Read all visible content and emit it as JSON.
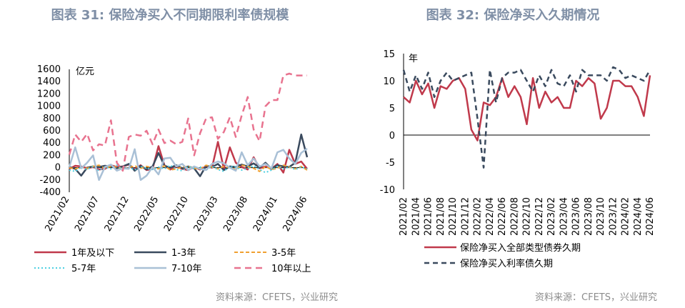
{
  "colors": {
    "title": "#7f8fa6",
    "red": "#c0394b",
    "navy": "#3a4a5e",
    "orange": "#f0a030",
    "cyan": "#4dd0e1",
    "lightblue": "#a9c0d6",
    "pink": "#e8738f"
  },
  "chart_data": [
    {
      "type": "line",
      "title": "图表 31: 保险净买入不同期限利率债规模",
      "unit": "亿元",
      "ylim": [
        -400,
        1600
      ],
      "yticks": [
        "1600",
        "1400",
        "1200",
        "1000",
        "800",
        "600",
        "400",
        "200",
        "0",
        "-200",
        "-400"
      ],
      "xtick_labels": [
        "2021/02",
        "2021/07",
        "2021/12",
        "2022/05",
        "2022/10",
        "2023/03",
        "2023/08",
        "2024/01",
        "2024/06"
      ],
      "x_start": "2021/02",
      "x_end": "2024/06",
      "series": [
        {
          "name": "1年及以下",
          "color": "#c0394b",
          "dash": "",
          "width": 2.5,
          "values": [
            -20,
            30,
            20,
            -10,
            10,
            -30,
            -20,
            40,
            10,
            20,
            50,
            -30,
            40,
            -40,
            -20,
            350,
            40,
            -30,
            20,
            -20,
            -40,
            10,
            -30,
            20,
            0,
            420,
            -20,
            330,
            80,
            10,
            -30,
            170,
            -10,
            20,
            -20,
            60,
            -80,
            290,
            60,
            100,
            -20
          ]
        },
        {
          "name": "1-3年",
          "color": "#3a4a5e",
          "dash": "",
          "width": 2.5,
          "values": [
            10,
            -20,
            -130,
            0,
            20,
            10,
            30,
            20,
            -10,
            20,
            60,
            -50,
            30,
            -30,
            20,
            240,
            30,
            0,
            40,
            -10,
            20,
            -10,
            -140,
            30,
            10,
            60,
            -40,
            20,
            10,
            50,
            20,
            70,
            0,
            80,
            -20,
            40,
            20,
            10,
            80,
            540,
            170
          ]
        },
        {
          "name": "3-5年",
          "color": "#f0a030",
          "dash": "5,3",
          "width": 2,
          "values": [
            0,
            -20,
            10,
            -10,
            20,
            40,
            -10,
            20,
            10,
            -20,
            0,
            30,
            -10,
            20,
            0,
            -20,
            30,
            -40,
            -20,
            10,
            20,
            -10,
            -20,
            40,
            10,
            -20,
            20,
            0,
            -30,
            40,
            20,
            -10,
            -60,
            20,
            -30,
            -10,
            40,
            10,
            -20,
            20,
            -40
          ]
        },
        {
          "name": "5-7年",
          "color": "#4dd0e1",
          "dash": "2,3",
          "width": 2,
          "values": [
            -40,
            -60,
            10,
            -30,
            20,
            -50,
            10,
            -20,
            40,
            -30,
            10,
            -40,
            20,
            -10,
            -30,
            10,
            -20,
            40,
            -30,
            -50,
            20,
            -10,
            10,
            -40,
            20,
            -30,
            -60,
            20,
            10,
            -40,
            -10,
            30,
            -30,
            -80,
            -40,
            20,
            -20,
            10,
            -30,
            10,
            -20
          ]
        },
        {
          "name": "7-10年",
          "color": "#a9c0d6",
          "dash": "",
          "width": 2.5,
          "values": [
            10,
            330,
            -10,
            80,
            200,
            -200,
            10,
            50,
            -50,
            -10,
            -20,
            300,
            -200,
            -130,
            10,
            -110,
            150,
            160,
            20,
            60,
            -40,
            20,
            -20,
            -40,
            60,
            100,
            70,
            0,
            -50,
            250,
            40,
            150,
            20,
            60,
            -10,
            250,
            290,
            150,
            60,
            240,
            310
          ]
        },
        {
          "name": "10年以上",
          "color": "#e8738f",
          "dash": "9,6",
          "width": 2.5,
          "values": [
            210,
            540,
            420,
            550,
            280,
            380,
            360,
            770,
            80,
            -50,
            500,
            540,
            520,
            600,
            380,
            620,
            400,
            440,
            380,
            420,
            800,
            200,
            560,
            800,
            820,
            470,
            580,
            820,
            500,
            850,
            1150,
            620,
            430,
            1000,
            1100,
            1100,
            1500,
            1530,
            1500,
            1500,
            1500
          ]
        }
      ]
    },
    {
      "type": "line",
      "title": "图表 32: 保险净买入久期情况",
      "unit": "年",
      "ylim": [
        -10,
        15
      ],
      "yticks": [
        "15",
        "10",
        "5",
        "0",
        "-5",
        "-10"
      ],
      "xtick_labels": [
        "2021/02",
        "2021/04",
        "2021/06",
        "2021/08",
        "2021/10",
        "2021/12",
        "2022/02",
        "2022/04",
        "2022/06",
        "2022/08",
        "2022/10",
        "2022/12",
        "2023/02",
        "2023/04",
        "2023/06",
        "2023/08",
        "2023/10",
        "2023/12",
        "2024/02",
        "2024/04",
        "2024/06"
      ],
      "series": [
        {
          "name": "保险净买入全部类型债券久期",
          "color": "#c0394b",
          "dash": "",
          "width": 2.5,
          "values": [
            7,
            6,
            10,
            7.5,
            9.5,
            5,
            9,
            8.5,
            10,
            10.5,
            8.5,
            1,
            -1,
            6,
            5.5,
            7,
            10.5,
            7,
            9,
            7,
            2,
            10.5,
            5,
            8,
            6,
            7,
            5,
            5,
            10,
            9,
            10.5,
            9.5,
            3,
            5,
            10,
            10,
            9,
            9,
            7,
            3.5,
            11
          ]
        },
        {
          "name": "保险净买入利率债久期",
          "color": "#3a4a5e",
          "dash": "7,5",
          "width": 2.5,
          "values": [
            12,
            8,
            11,
            8.5,
            11.5,
            7,
            10,
            11.5,
            10,
            10.5,
            11,
            11.5,
            3,
            -6,
            12,
            6,
            10.5,
            11.5,
            11.5,
            12,
            10,
            8,
            11,
            9,
            12,
            9.5,
            9,
            11,
            8,
            12,
            11,
            11,
            11,
            10,
            12.5,
            12,
            10.5,
            11,
            10.5,
            10,
            12
          ]
        }
      ]
    }
  ],
  "legend_left": [
    "1年及以下",
    "1-3年",
    "3-5年",
    "5-7年",
    "7-10年",
    "10年以上"
  ],
  "legend_right": [
    "保险净买入全部类型债券久期",
    "保险净买入利率债久期"
  ],
  "source_left": "资料来源：CFETS，兴业研究",
  "source_right": "资料来源：CFETS，兴业研究"
}
